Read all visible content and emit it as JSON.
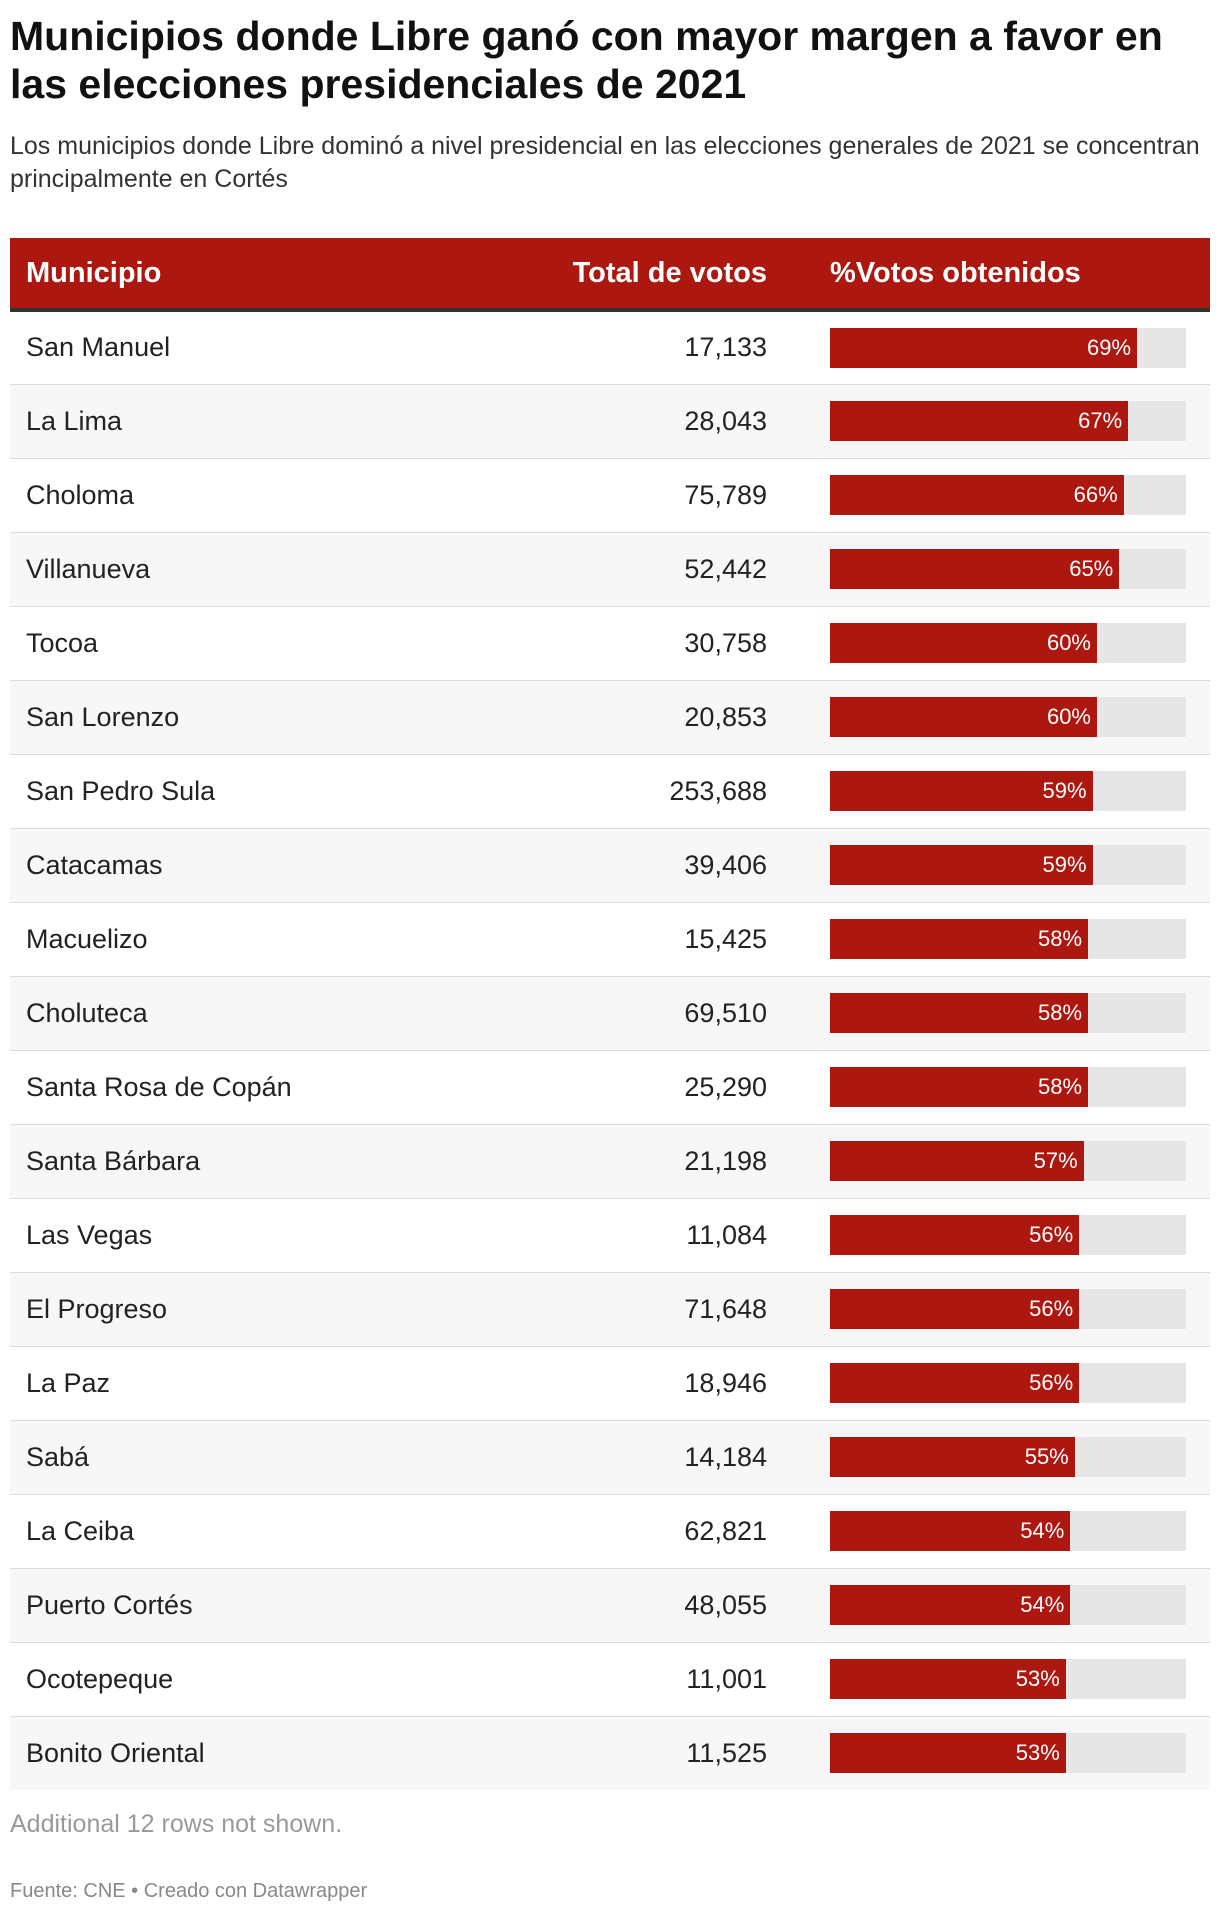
{
  "title": "Municipios donde Libre ganó con mayor margen a favor en las elecciones presidenciales de 2021",
  "subtitle": "Los municipios donde Libre dominó a nivel presidencial en las elecciones generales de 2021 se concentran principalmente en Cortés",
  "colors": {
    "accent": "#ac1710",
    "track": "#e6e6e6"
  },
  "headers": {
    "municipio": "Municipio",
    "votos": "Total de votos",
    "pct": "%Votos obtenidos"
  },
  "rows": [
    {
      "municipio": "San Manuel",
      "votos": "17,133",
      "pct": 69,
      "pct_label": "69%"
    },
    {
      "municipio": "La Lima",
      "votos": "28,043",
      "pct": 67,
      "pct_label": "67%"
    },
    {
      "municipio": "Choloma",
      "votos": "75,789",
      "pct": 66,
      "pct_label": "66%"
    },
    {
      "municipio": "Villanueva",
      "votos": "52,442",
      "pct": 65,
      "pct_label": "65%"
    },
    {
      "municipio": "Tocoa",
      "votos": "30,758",
      "pct": 60,
      "pct_label": "60%"
    },
    {
      "municipio": "San Lorenzo",
      "votos": "20,853",
      "pct": 60,
      "pct_label": "60%"
    },
    {
      "municipio": "San Pedro Sula",
      "votos": "253,688",
      "pct": 59,
      "pct_label": "59%"
    },
    {
      "municipio": "Catacamas",
      "votos": "39,406",
      "pct": 59,
      "pct_label": "59%"
    },
    {
      "municipio": "Macuelizo",
      "votos": "15,425",
      "pct": 58,
      "pct_label": "58%"
    },
    {
      "municipio": "Choluteca",
      "votos": "69,510",
      "pct": 58,
      "pct_label": "58%"
    },
    {
      "municipio": "Santa Rosa de Copán",
      "votos": "25,290",
      "pct": 58,
      "pct_label": "58%"
    },
    {
      "municipio": "Santa Bárbara",
      "votos": "21,198",
      "pct": 57,
      "pct_label": "57%"
    },
    {
      "municipio": "Las Vegas",
      "votos": "11,084",
      "pct": 56,
      "pct_label": "56%"
    },
    {
      "municipio": "El Progreso",
      "votos": "71,648",
      "pct": 56,
      "pct_label": "56%"
    },
    {
      "municipio": "La Paz",
      "votos": "18,946",
      "pct": 56,
      "pct_label": "56%"
    },
    {
      "municipio": "Sabá",
      "votos": "14,184",
      "pct": 55,
      "pct_label": "55%"
    },
    {
      "municipio": "La Ceiba",
      "votos": "62,821",
      "pct": 54,
      "pct_label": "54%"
    },
    {
      "municipio": "Puerto Cortés",
      "votos": "48,055",
      "pct": 54,
      "pct_label": "54%"
    },
    {
      "municipio": "Ocotepeque",
      "votos": "11,001",
      "pct": 53,
      "pct_label": "53%"
    },
    {
      "municipio": "Bonito Oriental",
      "votos": "11,525",
      "pct": 53,
      "pct_label": "53%"
    }
  ],
  "note": "Additional 12 rows not shown.",
  "footer": "Fuente: CNE • Creado con Datawrapper",
  "chart_data": {
    "type": "table",
    "columns": [
      "Municipio",
      "Total de votos",
      "%Votos obtenidos"
    ],
    "categories": [
      "San Manuel",
      "La Lima",
      "Choloma",
      "Villanueva",
      "Tocoa",
      "San Lorenzo",
      "San Pedro Sula",
      "Catacamas",
      "Macuelizo",
      "Choluteca",
      "Santa Rosa de Copán",
      "Santa Bárbara",
      "Las Vegas",
      "El Progreso",
      "La Paz",
      "Sabá",
      "La Ceiba",
      "Puerto Cortés",
      "Ocotepeque",
      "Bonito Oriental"
    ],
    "series": [
      {
        "name": "Total de votos",
        "values": [
          17133,
          28043,
          75789,
          52442,
          30758,
          20853,
          253688,
          39406,
          15425,
          69510,
          25290,
          21198,
          11084,
          71648,
          18946,
          14184,
          62821,
          48055,
          11001,
          11525
        ]
      },
      {
        "name": "%Votos obtenidos",
        "values": [
          69,
          67,
          66,
          65,
          60,
          60,
          59,
          59,
          58,
          58,
          58,
          57,
          56,
          56,
          56,
          55,
          54,
          54,
          53,
          53
        ]
      }
    ],
    "bar_max": 80
  }
}
